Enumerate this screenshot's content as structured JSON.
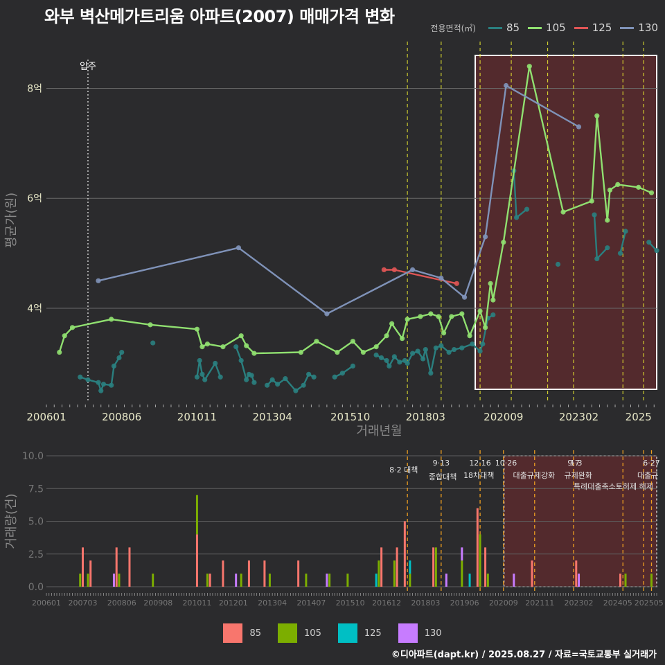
{
  "title": "와부 벽산메가트리움 아파트(2007) 매매가격 변화",
  "source": "©디아파트(dapt.kr) / 2025.08.27 / 자료=국토교통부 실거래가",
  "colors": {
    "85": "#f8766d",
    "105": "#7cae00",
    "125": "#00bfc4",
    "130": "#c77cff",
    "line85": "#2a7f7f",
    "line105": "#90e070",
    "line125": "#e05555",
    "line130": "#7f92b8"
  },
  "chart_data": [
    {
      "type": "line",
      "legend_title": "전용면적(㎡)",
      "ylabel": "평균가(원)",
      "xlabel": "거래년월",
      "ylim": [
        2.3,
        8.9
      ],
      "x_range": [
        "2006-01",
        "2025-08"
      ],
      "yticks": [
        {
          "v": 4,
          "label": "4억"
        },
        {
          "v": 6,
          "label": "6억"
        },
        {
          "v": 8,
          "label": "8억"
        }
      ],
      "xticks": [
        "200601",
        "200806",
        "201011",
        "201304",
        "201510",
        "201803",
        "202009",
        "202302",
        "2025"
      ],
      "move_in": {
        "date": "2007-05",
        "label": "입주"
      },
      "highlight": {
        "from": "2020-12",
        "to": "2025-08"
      },
      "events": [
        "2017-08",
        "2018-09",
        "2019-12",
        "2020-12",
        "2022-02",
        "2022-12",
        "2024-07",
        "2025-03"
      ],
      "series": [
        {
          "name": "85",
          "points": [
            [
              "2007-02",
              2.75
            ],
            [
              "2007-05",
              2.7
            ],
            [
              "2007-09",
              2.65
            ],
            [
              "2007-10",
              2.5
            ],
            [
              "2007-11",
              2.62
            ],
            [
              "2008-02",
              2.6
            ],
            [
              "2008-03",
              2.95
            ],
            [
              "2008-05",
              3.1
            ],
            [
              "2008-06",
              3.2
            ],
            [
              "2009-06",
              3.37
            ],
            [
              "2010-11",
              2.75
            ],
            [
              "2010-12",
              3.05
            ],
            [
              "2011-01",
              2.8
            ],
            [
              "2011-02",
              2.7
            ],
            [
              "2011-06",
              3.0
            ],
            [
              "2011-08",
              2.75
            ],
            [
              "2012-02",
              3.3
            ],
            [
              "2012-04",
              3.05
            ],
            [
              "2012-06",
              2.7
            ],
            [
              "2012-07",
              2.8
            ],
            [
              "2012-08",
              2.78
            ],
            [
              "2012-09",
              2.65
            ],
            [
              "2013-02",
              2.6
            ],
            [
              "2013-04",
              2.7
            ],
            [
              "2013-06",
              2.62
            ],
            [
              "2013-09",
              2.72
            ],
            [
              "2014-01",
              2.5
            ],
            [
              "2014-04",
              2.6
            ],
            [
              "2014-06",
              2.8
            ],
            [
              "2014-08",
              2.75
            ],
            [
              "2015-04",
              2.75
            ],
            [
              "2015-07",
              2.82
            ],
            [
              "2015-11",
              2.95
            ],
            [
              "2016-08",
              3.15
            ],
            [
              "2016-10",
              3.1
            ],
            [
              "2016-12",
              3.05
            ],
            [
              "2017-01",
              2.95
            ],
            [
              "2017-03",
              3.12
            ],
            [
              "2017-05",
              3.02
            ],
            [
              "2017-07",
              3.05
            ],
            [
              "2017-08",
              3.0
            ],
            [
              "2017-10",
              3.18
            ],
            [
              "2017-12",
              3.22
            ],
            [
              "2018-02",
              3.08
            ],
            [
              "2018-03",
              3.25
            ],
            [
              "2018-05",
              2.82
            ],
            [
              "2018-07",
              3.28
            ],
            [
              "2018-09",
              3.32
            ],
            [
              "2018-12",
              3.2
            ],
            [
              "2019-02",
              3.25
            ],
            [
              "2019-05",
              3.28
            ],
            [
              "2019-09",
              3.35
            ],
            [
              "2019-12",
              3.22
            ],
            [
              "2020-01",
              3.35
            ],
            [
              "2020-03",
              3.82
            ],
            [
              "2020-05",
              3.88
            ],
            [
              "2021-01",
              6.5
            ],
            [
              "2021-02",
              5.65
            ],
            [
              "2021-06",
              5.8
            ],
            [
              "2022-06",
              4.8
            ],
            [
              "2023-08",
              5.7
            ],
            [
              "2023-09",
              4.9
            ],
            [
              "2024-01",
              5.1
            ],
            [
              "2024-06",
              5.0
            ],
            [
              "2024-08",
              5.4
            ],
            [
              "2025-05",
              5.2
            ],
            [
              "2025-08",
              5.05
            ]
          ]
        },
        {
          "name": "105",
          "points": [
            [
              "2006-06",
              3.2
            ],
            [
              "2006-08",
              3.5
            ],
            [
              "2006-11",
              3.65
            ],
            [
              "2008-02",
              3.8
            ],
            [
              "2009-05",
              3.7
            ],
            [
              "2010-11",
              3.62
            ],
            [
              "2011-01",
              3.3
            ],
            [
              "2011-03",
              3.35
            ],
            [
              "2011-09",
              3.3
            ],
            [
              "2012-04",
              3.5
            ],
            [
              "2012-06",
              3.32
            ],
            [
              "2012-09",
              3.18
            ],
            [
              "2014-03",
              3.2
            ],
            [
              "2014-09",
              3.4
            ],
            [
              "2015-05",
              3.2
            ],
            [
              "2015-11",
              3.4
            ],
            [
              "2016-03",
              3.2
            ],
            [
              "2016-08",
              3.3
            ],
            [
              "2016-12",
              3.5
            ],
            [
              "2017-02",
              3.72
            ],
            [
              "2017-06",
              3.45
            ],
            [
              "2017-08",
              3.8
            ],
            [
              "2018-01",
              3.85
            ],
            [
              "2018-05",
              3.9
            ],
            [
              "2018-08",
              3.85
            ],
            [
              "2018-10",
              3.55
            ],
            [
              "2019-01",
              3.85
            ],
            [
              "2019-05",
              3.9
            ],
            [
              "2019-08",
              3.5
            ],
            [
              "2019-12",
              3.95
            ],
            [
              "2020-02",
              3.65
            ],
            [
              "2020-04",
              4.45
            ],
            [
              "2020-05",
              4.15
            ],
            [
              "2020-09",
              5.2
            ],
            [
              "2021-07",
              8.4
            ],
            [
              "2022-08",
              5.75
            ],
            [
              "2023-07",
              5.95
            ],
            [
              "2023-09",
              7.5
            ],
            [
              "2024-01",
              5.6
            ],
            [
              "2024-02",
              6.15
            ],
            [
              "2024-05",
              6.25
            ],
            [
              "2025-01",
              6.2
            ],
            [
              "2025-06",
              6.1
            ]
          ]
        },
        {
          "name": "125",
          "points": [
            [
              "2016-11",
              4.7
            ],
            [
              "2017-03",
              4.7
            ],
            [
              "2019-03",
              4.45
            ]
          ]
        },
        {
          "name": "130",
          "points": [
            [
              "2007-09",
              4.5
            ],
            [
              "2012-03",
              5.1
            ],
            [
              "2015-01",
              3.9
            ],
            [
              "2017-10",
              4.7
            ],
            [
              "2018-09",
              4.55
            ],
            [
              "2019-06",
              4.2
            ],
            [
              "2020-02",
              5.3
            ],
            [
              "2020-10",
              8.05
            ],
            [
              "2023-02",
              7.3
            ]
          ]
        }
      ]
    },
    {
      "type": "bar",
      "ylabel": "거래량(건)",
      "ylim": [
        0,
        10
      ],
      "yticks": [
        "0.0",
        "2.5",
        "5.0",
        "7.5",
        "10.0"
      ],
      "xticks": [
        "200601",
        "200703",
        "200806",
        "200908",
        "201011",
        "201201",
        "201304",
        "201407",
        "201510",
        "201612",
        "201803",
        "201906",
        "202009",
        "202111",
        "202302",
        "202405",
        "202505"
      ],
      "annotations": [
        {
          "date": "2017-08",
          "top": "",
          "label": "8·2 대책"
        },
        {
          "date": "2018-09",
          "top": "9·13",
          "label": "종합대책"
        },
        {
          "date": "2019-12",
          "top": "12·16",
          "label": "18차대책"
        },
        {
          "date": "2020-10",
          "top": "10·26",
          "label": "대출규제강화"
        },
        {
          "date": "2023-01",
          "top": "1·3",
          "label": "규제완화"
        },
        {
          "date": "2022-12",
          "top": "9·7",
          "label": "특례대출축소토허제 해제"
        },
        {
          "date": "2025-06",
          "top": "6·27",
          "label": "대출규"
        }
      ],
      "series": [
        {
          "name": "85",
          "values": [
            [
              "2007-03",
              3
            ],
            [
              "2007-06",
              2
            ],
            [
              "2008-04",
              3
            ],
            [
              "2008-09",
              3
            ],
            [
              "2010-11",
              4
            ],
            [
              "2011-04",
              1
            ],
            [
              "2011-09",
              2
            ],
            [
              "2012-07",
              2
            ],
            [
              "2013-01",
              2
            ],
            [
              "2014-02",
              2
            ],
            [
              "2016-10",
              3
            ],
            [
              "2017-04",
              3
            ],
            [
              "2017-07",
              5
            ],
            [
              "2018-06",
              3
            ],
            [
              "2019-11",
              6
            ],
            [
              "2020-02",
              3
            ],
            [
              "2021-08",
              2
            ],
            [
              "2023-01",
              2
            ],
            [
              "2024-06",
              1
            ]
          ]
        },
        {
          "name": "105",
          "values": [
            [
              "2007-02",
              1
            ],
            [
              "2007-05",
              1
            ],
            [
              "2008-05",
              1
            ],
            [
              "2009-06",
              1
            ],
            [
              "2010-11",
              3
            ],
            [
              "2011-03",
              1
            ],
            [
              "2012-04",
              1
            ],
            [
              "2013-03",
              1
            ],
            [
              "2014-05",
              1
            ],
            [
              "2015-02",
              1
            ],
            [
              "2015-09",
              1
            ],
            [
              "2016-09",
              2
            ],
            [
              "2017-03",
              2
            ],
            [
              "2017-09",
              1
            ],
            [
              "2018-07",
              3
            ],
            [
              "2019-05",
              2
            ],
            [
              "2019-12",
              4
            ],
            [
              "2020-03",
              1
            ],
            [
              "2024-08",
              1
            ],
            [
              "2025-06",
              1
            ]
          ]
        },
        {
          "name": "125",
          "values": [
            [
              "2016-08",
              1
            ],
            [
              "2017-09",
              1
            ],
            [
              "2019-08",
              1
            ]
          ]
        },
        {
          "name": "130",
          "values": [
            [
              "2008-03",
              1
            ],
            [
              "2012-02",
              1
            ],
            [
              "2015-01",
              1
            ],
            [
              "2018-11",
              1
            ],
            [
              "2019-05",
              1
            ],
            [
              "2021-01",
              1
            ],
            [
              "2023-02",
              1
            ]
          ]
        }
      ]
    }
  ],
  "bottom_legend": [
    "85",
    "105",
    "125",
    "130"
  ]
}
